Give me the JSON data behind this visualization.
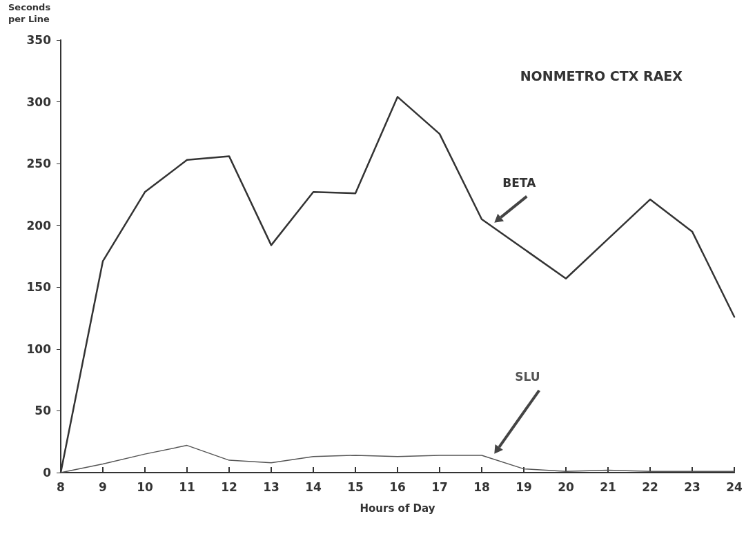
{
  "chart_data": {
    "type": "line",
    "title": "NONMETRO CTX RAEX",
    "xlabel": "Hours of Day",
    "ylabel": "Seconds per Line",
    "x": [
      8,
      9,
      10,
      11,
      12,
      13,
      14,
      15,
      16,
      17,
      18,
      19,
      20,
      21,
      22,
      23,
      24
    ],
    "series": [
      {
        "name": "BETA",
        "color": "#333333",
        "values": [
          0,
          171,
          227,
          253,
          256,
          184,
          227,
          226,
          304,
          274,
          205,
          181,
          157,
          189,
          221,
          195,
          126
        ]
      },
      {
        "name": "SLU",
        "color": "#555555",
        "values": [
          0,
          7,
          15,
          22,
          10,
          8,
          13,
          14,
          13,
          14,
          14,
          3,
          1,
          2,
          1,
          1,
          1
        ]
      }
    ],
    "xlim": [
      8,
      24
    ],
    "xticks": [
      8,
      9,
      10,
      11,
      12,
      13,
      14,
      15,
      16,
      17,
      18,
      19,
      20,
      21,
      22,
      23,
      24
    ],
    "ylim": [
      0,
      350
    ],
    "yticks": [
      0,
      50,
      100,
      150,
      200,
      250,
      300,
      350
    ],
    "grid": false,
    "legend": false,
    "marker": "none",
    "line_style": "solid"
  }
}
